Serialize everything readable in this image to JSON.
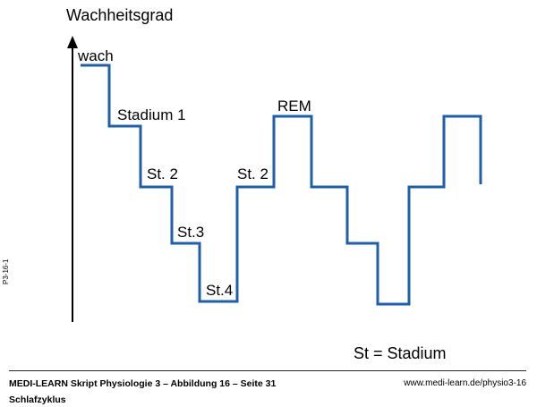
{
  "diagram": {
    "ylabel": "Wachheitsgrad",
    "stage_labels": [
      "wach",
      "Stadium 1",
      "St. 2",
      "St.3",
      "St.4",
      "St. 2",
      "REM"
    ],
    "legend": "St = Stadium"
  },
  "chart_data": {
    "type": "line",
    "step": true,
    "ylabel": "Wachheitsgrad",
    "y_levels": [
      "St.4",
      "St.3",
      "St. 2",
      "Stadium 1",
      "REM",
      "wach"
    ],
    "sequence": [
      "wach",
      "Stadium 1",
      "St. 2",
      "St.3",
      "St.4",
      "St. 2",
      "REM",
      "St. 2",
      "St.3",
      "St.4",
      "St. 2",
      "REM"
    ],
    "line_color": "#1f5fa8"
  },
  "footer": {
    "title": "MEDI-LEARN Skript Physiologie 3 – Abbildung 16 – Seite 31",
    "subtitle": "Schlafzyklus",
    "url": "www.medi-learn.de/physio3-16",
    "side_code": "P3-16-1"
  }
}
